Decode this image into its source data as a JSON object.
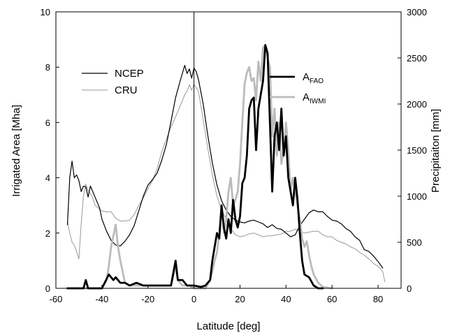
{
  "chart_data": {
    "type": "line",
    "xlabel": "Latitude [deg]",
    "ylabel_left": "Irrigated Area [Mha]",
    "ylabel_right": "Precipitaiton [mm]",
    "xlim": [
      -60,
      90
    ],
    "ylim_left": [
      0,
      10
    ],
    "ylim_right": [
      0,
      3000
    ],
    "x_ticks": [
      "-60",
      "-40",
      "-20",
      "0",
      "20",
      "40",
      "60",
      "80"
    ],
    "y_left_ticks": [
      "0",
      "2",
      "4",
      "6",
      "8",
      "10"
    ],
    "y_right_ticks": [
      "0",
      "500",
      "1000",
      "1500",
      "2000",
      "2500",
      "3000"
    ],
    "vline_x": 0,
    "grid": false,
    "legends": {
      "left": {
        "items": [
          "NCEP",
          "CRU"
        ]
      },
      "right": {
        "items": [
          {
            "main": "A",
            "sub": "FAO"
          },
          {
            "main": "A",
            "sub": "IWMI"
          }
        ]
      }
    },
    "series": [
      {
        "name": "NCEP",
        "axis": "right",
        "color": "#000000",
        "width": 1.2,
        "x": [
          -55,
          -54,
          -53,
          -52,
          -51,
          -50,
          -49,
          -48,
          -47,
          -46,
          -45,
          -44,
          -43,
          -42,
          -41,
          -40,
          -38,
          -36,
          -34,
          -32,
          -30,
          -28,
          -26,
          -24,
          -22,
          -20,
          -18,
          -16,
          -14,
          -12,
          -10,
          -8,
          -6,
          -4,
          -3,
          -2,
          -1,
          0,
          1,
          2,
          4,
          6,
          8,
          10,
          12,
          14,
          16,
          18,
          20,
          22,
          24,
          26,
          28,
          30,
          32,
          34,
          36,
          38,
          40,
          42,
          44,
          46,
          48,
          50,
          52,
          54,
          56,
          58,
          60,
          62,
          64,
          66,
          68,
          70,
          72,
          74,
          76,
          78,
          80,
          82
        ],
        "y": [
          690,
          1200,
          1380,
          1200,
          1230,
          1170,
          1050,
          1110,
          1100,
          990,
          1110,
          1050,
          990,
          930,
          870,
          750,
          620,
          520,
          470,
          460,
          510,
          580,
          680,
          840,
          1000,
          1120,
          1180,
          1250,
          1390,
          1560,
          1810,
          2070,
          2250,
          2420,
          2330,
          2380,
          2280,
          2390,
          2350,
          2260,
          2000,
          1660,
          1360,
          1120,
          950,
          850,
          780,
          740,
          720,
          710,
          730,
          740,
          720,
          700,
          660,
          690,
          650,
          640,
          600,
          560,
          580,
          680,
          750,
          820,
          850,
          830,
          830,
          780,
          740,
          730,
          700,
          650,
          620,
          560,
          520,
          420,
          400,
          350,
          290,
          220
        ]
      },
      {
        "name": "CRU",
        "axis": "right",
        "color": "#999999",
        "width": 1.0,
        "x": [
          -55,
          -54,
          -53,
          -52,
          -51,
          -50,
          -49,
          -48,
          -47,
          -46,
          -45,
          -44,
          -43,
          -42,
          -41,
          -40,
          -38,
          -36,
          -34,
          -32,
          -30,
          -28,
          -26,
          -24,
          -22,
          -20,
          -18,
          -16,
          -14,
          -12,
          -10,
          -8,
          -6,
          -4,
          -3,
          -2,
          -1,
          0,
          1,
          2,
          4,
          6,
          8,
          10,
          12,
          14,
          16,
          18,
          20,
          22,
          24,
          26,
          28,
          30,
          32,
          34,
          36,
          38,
          40,
          42,
          44,
          46,
          48,
          50,
          52,
          54,
          56,
          58,
          60,
          62,
          64,
          66,
          68,
          70,
          72,
          74,
          76,
          78,
          80,
          82,
          83
        ],
        "y": [
          720,
          600,
          500,
          470,
          400,
          320,
          700,
          1010,
          1130,
          1060,
          1030,
          980,
          900,
          880,
          860,
          840,
          830,
          830,
          760,
          730,
          730,
          740,
          800,
          900,
          980,
          1080,
          1170,
          1300,
          1480,
          1620,
          1750,
          1860,
          1980,
          2100,
          2140,
          2210,
          2150,
          2210,
          2180,
          2130,
          1830,
          1520,
          1230,
          1000,
          850,
          750,
          650,
          580,
          560,
          570,
          590,
          600,
          580,
          560,
          570,
          570,
          580,
          590,
          620,
          620,
          640,
          620,
          600,
          610,
          620,
          620,
          580,
          560,
          560,
          520,
          500,
          480,
          450,
          430,
          390,
          360,
          320,
          270,
          240,
          180,
          70
        ]
      },
      {
        "name": "A_FAO",
        "axis": "left",
        "color": "#000000",
        "width": 2.8,
        "x": [
          -55,
          -48,
          -47,
          -46,
          -45,
          -40,
          -37,
          -35,
          -34,
          -32,
          -30,
          -28,
          -25,
          -22,
          -20,
          -15,
          -10,
          -8,
          -7,
          -6,
          -5,
          -3,
          -1,
          0,
          3,
          5,
          7,
          8,
          9,
          10,
          11,
          12,
          13,
          14,
          15,
          16,
          17,
          18,
          19,
          20,
          21,
          22,
          23,
          24,
          25,
          26,
          27,
          28,
          29,
          30,
          31,
          32,
          33,
          34,
          35,
          36,
          37,
          38,
          39,
          40,
          41,
          42,
          43,
          44,
          45,
          46,
          47,
          48,
          50,
          52,
          54,
          56
        ],
        "y": [
          0,
          0,
          0.3,
          0,
          0,
          0,
          0.5,
          0.3,
          0.4,
          0.2,
          0.2,
          0.1,
          0.2,
          0.1,
          0.1,
          0.1,
          0.1,
          1.0,
          0.3,
          0.3,
          0.3,
          0.1,
          0.1,
          0.1,
          0.05,
          0.1,
          0.3,
          1.0,
          1.5,
          2.0,
          1.8,
          3.0,
          2.2,
          1.8,
          2.5,
          2.0,
          3.2,
          2.5,
          2.2,
          2.6,
          3.8,
          4.0,
          4.8,
          6.5,
          6.8,
          6.9,
          5.0,
          6.5,
          7.0,
          7.5,
          8.8,
          8.5,
          6.0,
          3.5,
          5.5,
          6.0,
          5.0,
          6.5,
          4.8,
          5.5,
          4.0,
          3.5,
          3.0,
          4.0,
          3.2,
          2.0,
          1.0,
          0.5,
          0.4,
          0.1,
          0,
          0
        ]
      },
      {
        "name": "A_IWMI",
        "axis": "left",
        "color": "#bbbbbb",
        "width": 2.8,
        "x": [
          -55,
          -40,
          -38,
          -37,
          -36,
          -35,
          -34,
          -33,
          -32,
          -31,
          -30,
          -28,
          -25,
          -20,
          -10,
          -8,
          -7,
          -5,
          -2,
          0,
          5,
          7,
          8,
          9,
          10,
          11,
          12,
          13,
          14,
          15,
          16,
          17,
          18,
          19,
          20,
          21,
          22,
          23,
          24,
          25,
          26,
          27,
          28,
          29,
          30,
          31,
          32,
          33,
          34,
          35,
          36,
          37,
          38,
          39,
          40,
          41,
          42,
          43,
          44,
          45,
          46,
          47,
          48,
          49,
          50,
          51,
          52,
          54,
          56,
          60
        ],
        "y": [
          0,
          0,
          0.3,
          0.8,
          1.5,
          1.9,
          2.3,
          1.5,
          1.0,
          0.6,
          0.2,
          0.1,
          0.1,
          0.1,
          0.1,
          0.8,
          0.3,
          0.1,
          0.1,
          0,
          0,
          0.3,
          0.6,
          1.0,
          1.3,
          2.0,
          3.0,
          2.0,
          2.5,
          3.5,
          4.0,
          3.0,
          3.2,
          3.5,
          4.5,
          6.0,
          7.4,
          7.8,
          8.0,
          7.5,
          7.6,
          6.8,
          8.2,
          7.5,
          8.7,
          8.8,
          8.3,
          8.0,
          5.5,
          6.5,
          4.8,
          6.0,
          4.5,
          5.0,
          6.0,
          5.0,
          3.5,
          4.0,
          3.5,
          3.0,
          2.5,
          1.8,
          1.5,
          1.7,
          1.2,
          0.8,
          0.5,
          0.2,
          0.05,
          0
        ]
      }
    ]
  }
}
